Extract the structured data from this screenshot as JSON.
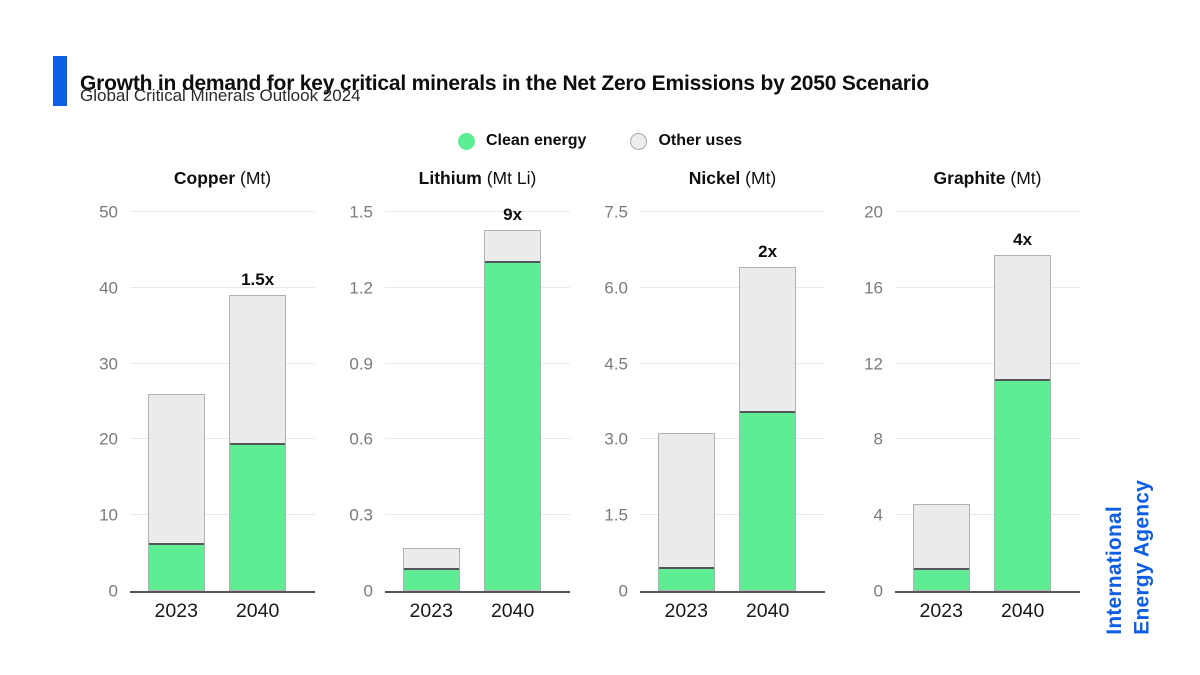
{
  "header": {
    "title": "Growth in demand for key critical minerals in the Net Zero Emissions by 2050 Scenario",
    "subtitle": "Global Critical Minerals Outlook 2024"
  },
  "legend": {
    "items": [
      {
        "label": "Clean energy",
        "color": "#5EEC94",
        "filled": true
      },
      {
        "label": "Other uses",
        "color": "#EDEDED",
        "filled": false
      }
    ]
  },
  "branding": {
    "name": "International Energy Agency",
    "lines": [
      "International",
      "Energy Agency"
    ],
    "color": "#0C5FE4"
  },
  "colors": {
    "accent_blue": "#0C5FE4",
    "clean_energy_green": "#5EEC94",
    "other_uses_gray": "#EBEBEB",
    "bar_outline": "#B2B2B2",
    "axis": "#55565A",
    "gridline": "#E9E9E9",
    "tick_text": "#7A7A7A"
  },
  "chart_data": [
    {
      "type": "bar",
      "stacked": true,
      "title_bold": "Copper",
      "title_unit": " (Mt)",
      "categories": [
        "2023",
        "2040"
      ],
      "series": [
        {
          "name": "Clean energy",
          "values": [
            6.2,
            19.5
          ]
        },
        {
          "name": "Other uses",
          "values": [
            19.8,
            19.5
          ]
        }
      ],
      "totals": [
        26,
        39
      ],
      "multipliers": [
        "",
        "1.5x"
      ],
      "ylim": [
        0,
        50
      ],
      "yticks": [
        0,
        10,
        20,
        30,
        40,
        50
      ],
      "ytick_labels": [
        "0",
        "10",
        "20",
        "30",
        "40",
        "50"
      ],
      "grid": true,
      "legend_position": "top-center"
    },
    {
      "type": "bar",
      "stacked": true,
      "title_bold": "Lithium",
      "title_unit": " (Mt Li)",
      "categories": [
        "2023",
        "2040"
      ],
      "series": [
        {
          "name": "Clean energy",
          "values": [
            0.09,
            1.31
          ]
        },
        {
          "name": "Other uses",
          "values": [
            0.08,
            0.12
          ]
        }
      ],
      "totals": [
        0.17,
        1.43
      ],
      "multipliers": [
        "",
        "9x"
      ],
      "ylim": [
        0,
        1.5
      ],
      "yticks": [
        0,
        0.3,
        0.6,
        0.9,
        1.2,
        1.5
      ],
      "ytick_labels": [
        "0",
        "0.3",
        "0.6",
        "0.9",
        "1.2",
        "1.5"
      ],
      "grid": true,
      "legend_position": "top-center"
    },
    {
      "type": "bar",
      "stacked": true,
      "title_bold": "Nickel",
      "title_unit": " (Mt)",
      "categories": [
        "2023",
        "2040"
      ],
      "series": [
        {
          "name": "Clean energy",
          "values": [
            0.47,
            3.56
          ]
        },
        {
          "name": "Other uses",
          "values": [
            2.66,
            2.85
          ]
        }
      ],
      "totals": [
        3.13,
        6.41
      ],
      "multipliers": [
        "",
        "2x"
      ],
      "ylim": [
        0,
        7.5
      ],
      "yticks": [
        0,
        1.5,
        3.0,
        4.5,
        6.0,
        7.5
      ],
      "ytick_labels": [
        "0",
        "1.5",
        "3.0",
        "4.5",
        "6.0",
        "7.5"
      ],
      "grid": true,
      "legend_position": "top-center"
    },
    {
      "type": "bar",
      "stacked": true,
      "title_bold": "Graphite",
      "title_unit": " (Mt)",
      "categories": [
        "2023",
        "2040"
      ],
      "series": [
        {
          "name": "Clean energy",
          "values": [
            1.2,
            11.2
          ]
        },
        {
          "name": "Other uses",
          "values": [
            3.4,
            6.55
          ]
        }
      ],
      "totals": [
        4.6,
        17.75
      ],
      "multipliers": [
        "",
        "4x"
      ],
      "ylim": [
        0,
        20
      ],
      "yticks": [
        0,
        4,
        8,
        12,
        16,
        20
      ],
      "ytick_labels": [
        "0",
        "4",
        "8",
        "12",
        "16",
        "20"
      ],
      "grid": true,
      "legend_position": "top-center"
    }
  ]
}
